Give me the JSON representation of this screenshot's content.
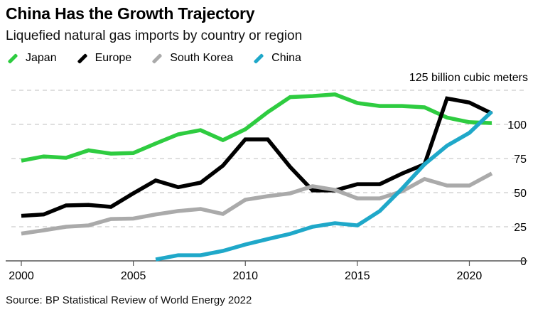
{
  "chart_data": {
    "type": "line",
    "title": "China Has the Growth Trajectory",
    "subtitle": "Liquefied natural gas imports by country or region",
    "ylabel": "125 billion cubic meters",
    "xlabel": "",
    "x": [
      2000,
      2001,
      2002,
      2003,
      2004,
      2005,
      2006,
      2007,
      2008,
      2009,
      2010,
      2011,
      2012,
      2013,
      2014,
      2015,
      2016,
      2017,
      2018,
      2019,
      2020,
      2021
    ],
    "xlim": [
      2000,
      2021
    ],
    "ylim": [
      0,
      125
    ],
    "x_ticks": [
      2000,
      2005,
      2010,
      2015,
      2020
    ],
    "x_tick_labels": [
      "2000",
      "2005",
      "2010",
      "2015",
      "2020"
    ],
    "y_ticks": [
      0,
      25,
      50,
      75,
      100,
      125
    ],
    "y_tick_labels": [
      "0",
      "25",
      "50",
      "75",
      "100"
    ],
    "grid": true,
    "legend_position": "top-left",
    "series": [
      {
        "name": "Japan",
        "color": "#2ecc40",
        "values": [
          73.4,
          76.5,
          75.5,
          81,
          78.6,
          79,
          86,
          92.7,
          95.8,
          88.5,
          96.4,
          109,
          120,
          120.8,
          122,
          115.6,
          113.5,
          113.5,
          112.5,
          105,
          101.6,
          101
        ]
      },
      {
        "name": "Europe",
        "color": "#000000",
        "values": [
          33,
          34,
          40.6,
          41,
          39.6,
          49.5,
          58.9,
          54,
          57.3,
          69.8,
          89,
          89,
          68.8,
          51.6,
          51.6,
          56.2,
          56.2,
          64,
          70.8,
          119,
          116,
          108
        ]
      },
      {
        "name": "South Korea",
        "color": "#aaaaaa",
        "values": [
          20,
          22.4,
          25,
          26,
          30.7,
          31,
          34,
          36.5,
          38,
          34.4,
          44.8,
          47.4,
          49.5,
          54.7,
          52,
          45.8,
          45.8,
          51,
          60,
          55.2,
          55.2,
          64
        ]
      },
      {
        "name": "China",
        "color": "#1fa8c9",
        "values": [
          null,
          null,
          null,
          null,
          null,
          null,
          1.0,
          4.1,
          4.1,
          7.3,
          12,
          16,
          19.8,
          25,
          27.6,
          26,
          36.5,
          53,
          70.8,
          84.4,
          93.8,
          109.4
        ]
      }
    ],
    "source": "Source: BP Statistical Review of World Energy 2022"
  }
}
